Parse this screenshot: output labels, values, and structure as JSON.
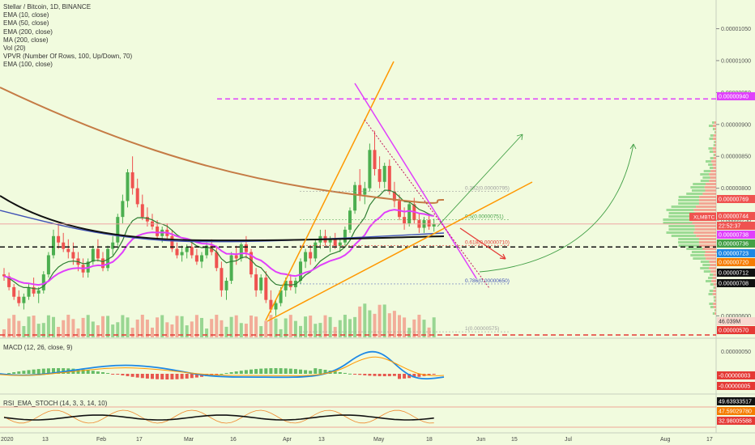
{
  "chart_data": {
    "type": "candlestick",
    "symbol_title": "Stellar / Bitcoin, 1D, BINANCE",
    "indicators": [
      "EMA (10, close)",
      "EMA (50, close)",
      "EMA (200, close)",
      "MA (200, close)",
      "Vol (20)",
      "VPVR (Number Of Rows, 100, Up/Down, 70)",
      "EMA (100, close)"
    ],
    "x_ticks": [
      "2020",
      "13",
      "Feb",
      "17",
      "Mar",
      "16",
      "Apr",
      "13",
      "May",
      "18",
      "Jun",
      "15",
      "Jul",
      "Aug",
      "17"
    ],
    "y_ticks": [
      "0.00001050",
      "0.00001000",
      "0.00000950",
      "0.00000900",
      "0.00000850",
      "0.00000800",
      "0.00000750",
      "0.00000700",
      "0.00000650",
      "0.00000600"
    ],
    "y_range": [
      5.65e-06,
      1.095e-05
    ],
    "price_tags": [
      {
        "text": "0.00000940",
        "color": "#e040fb"
      },
      {
        "text": "0.00000769",
        "color": "#ef5350"
      },
      {
        "text": "0.00000744",
        "color": "#ef5350"
      },
      {
        "text": "22:52:37",
        "color": "#ef5350"
      },
      {
        "text": "0.00000738",
        "color": "#e040fb"
      },
      {
        "text": "0.00000736",
        "color": "#43a047"
      },
      {
        "text": "0.00000723",
        "color": "#1e88e5"
      },
      {
        "text": "0.00000720",
        "color": "#f57c00"
      },
      {
        "text": "0.00000712",
        "color": "#111111"
      },
      {
        "text": "0.00000708",
        "color": "#111111"
      },
      {
        "text": "46.039M",
        "color": "#e8a38f"
      },
      {
        "text": "0.00000570",
        "color": "#e53935"
      }
    ],
    "symbol_badge": "XLMBTC",
    "fib_labels": [
      "0.382(0.00000795)",
      "0.5(0.00000751)",
      "0.618(0.00000710)",
      "0.786(0.00000650)",
      "1(0.00000575)"
    ],
    "macd": {
      "label": "MACD (12, 26, close, 9)",
      "y_ticks": [
        "0.00000050"
      ],
      "tags": [
        {
          "text": "-0.00000003",
          "color": "#e53935"
        },
        {
          "text": "-0.00000005",
          "color": "#e53935"
        }
      ]
    },
    "rsi": {
      "label": "RSI_EMA_STOCH (14, 3, 3, 14, 10)",
      "tags": [
        {
          "text": "49.63933517",
          "color": "#111111"
        },
        {
          "text": "47.59029780",
          "color": "#f57c00"
        },
        {
          "text": "32.98005588",
          "color": "#e53935"
        }
      ]
    },
    "candles": [
      [
        6.65e-06,
        6.75e-06,
        6.55e-06,
        6.62e-06
      ],
      [
        6.62e-06,
        6.68e-06,
        6.4e-06,
        6.45e-06
      ],
      [
        6.45e-06,
        6.5e-06,
        6.25e-06,
        6.3e-06
      ],
      [
        6.3e-06,
        6.4e-06,
        6.15e-06,
        6.2e-06
      ],
      [
        6.2e-06,
        6.35e-06,
        6.1e-06,
        6.3e-06
      ],
      [
        6.3e-06,
        6.5e-06,
        6.25e-06,
        6.45e-06
      ],
      [
        6.45e-06,
        6.6e-06,
        6.3e-06,
        6.35e-06
      ],
      [
        6.35e-06,
        6.45e-06,
        6.2e-06,
        6.4e-06
      ],
      [
        6.4e-06,
        6.7e-06,
        6.35e-06,
        6.65e-06
      ],
      [
        6.65e-06,
        7e-06,
        6.6e-06,
        6.95e-06
      ],
      [
        6.95e-06,
        7.35e-06,
        6.9e-06,
        7.25e-06
      ],
      [
        7.25e-06,
        7.45e-06,
        7.05e-06,
        7.15e-06
      ],
      [
        7.15e-06,
        7.3e-06,
        7e-06,
        7.05e-06
      ],
      [
        7.05e-06,
        7.2e-06,
        6.9e-06,
        7e-06
      ],
      [
        7e-06,
        7.15e-06,
        6.8e-06,
        6.9e-06
      ],
      [
        6.9e-06,
        7e-06,
        6.7e-06,
        6.8e-06
      ],
      [
        6.8e-06,
        6.9e-06,
        6.6e-06,
        6.68e-06
      ],
      [
        6.68e-06,
        6.9e-06,
        6.6e-06,
        6.85e-06
      ],
      [
        6.85e-06,
        7.1e-06,
        6.8e-06,
        7.05e-06
      ],
      [
        7.05e-06,
        7.2e-06,
        6.85e-06,
        6.9e-06
      ],
      [
        6.9e-06,
        7e-06,
        6.7e-06,
        6.75e-06
      ],
      [
        6.75e-06,
        7.1e-06,
        6.7e-06,
        7.05e-06
      ],
      [
        7.05e-06,
        7.25e-06,
        6.95e-06,
        7.15e-06
      ],
      [
        7.15e-06,
        7.6e-06,
        7.1e-06,
        7.55e-06
      ],
      [
        7.55e-06,
        7.9e-06,
        7.45e-06,
        7.8e-06
      ],
      [
        7.8e-06,
        8.3e-06,
        7.7e-06,
        8.25e-06
      ],
      [
        8.25e-06,
        8.5e-06,
        7.9e-06,
        8e-06
      ],
      [
        8e-06,
        8.15e-06,
        7.7e-06,
        7.75e-06
      ],
      [
        7.75e-06,
        7.9e-06,
        7.5e-06,
        7.55e-06
      ],
      [
        7.55e-06,
        7.7e-06,
        7.4e-06,
        7.48e-06
      ],
      [
        7.48e-06,
        7.6e-06,
        7.35e-06,
        7.4e-06
      ],
      [
        7.4e-06,
        7.5e-06,
        7.2e-06,
        7.25e-06
      ],
      [
        7.25e-06,
        7.4e-06,
        7.15e-06,
        7.35e-06
      ],
      [
        7.35e-06,
        7.45e-06,
        7.2e-06,
        7.25e-06
      ],
      [
        7.25e-06,
        7.35e-06,
        7e-06,
        7.05e-06
      ],
      [
        7.05e-06,
        7.15e-06,
        6.9e-06,
        6.95e-06
      ],
      [
        6.95e-06,
        7.1e-06,
        6.85e-06,
        7e-06
      ],
      [
        7e-06,
        7.12e-06,
        6.9e-06,
        7.08e-06
      ],
      [
        7.08e-06,
        7.15e-06,
        6.9e-06,
        6.95e-06
      ],
      [
        6.95e-06,
        7.05e-06,
        6.8e-06,
        6.85e-06
      ],
      [
        6.85e-06,
        7e-06,
        6.75e-06,
        6.95e-06
      ],
      [
        6.95e-06,
        7.15e-06,
        6.9e-06,
        7.1e-06
      ],
      [
        7.1e-06,
        7.2e-06,
        6.95e-06,
        7e-06
      ],
      [
        7e-06,
        7.1e-06,
        6.7e-06,
        6.75e-06
      ],
      [
        6.75e-06,
        6.85e-06,
        6.3e-06,
        6.4e-06
      ],
      [
        6.4e-06,
        6.6e-06,
        6.25e-06,
        6.55e-06
      ],
      [
        6.55e-06,
        7e-06,
        6.5e-06,
        6.95e-06
      ],
      [
        6.95e-06,
        7.1e-06,
        6.8e-06,
        6.9e-06
      ],
      [
        6.9e-06,
        7.15e-06,
        6.85e-06,
        7.12e-06
      ],
      [
        7.12e-06,
        7.25e-06,
        6.9e-06,
        7e-06
      ],
      [
        7e-06,
        7.05e-06,
        6.6e-06,
        6.65e-06
      ],
      [
        6.65e-06,
        6.75e-06,
        6.3e-06,
        6.4e-06
      ],
      [
        6.4e-06,
        6.65e-06,
        6.35e-06,
        6.6e-06
      ],
      [
        6.6e-06,
        6.7e-06,
        6.2e-06,
        6.25e-06
      ],
      [
        6.25e-06,
        6.4e-06,
        6.05e-06,
        6.1e-06
      ],
      [
        6.1e-06,
        6.25e-06,
        6e-06,
        6.2e-06
      ],
      [
        6.2e-06,
        6.45e-06,
        6.15e-06,
        6.4e-06
      ],
      [
        6.4e-06,
        6.6e-06,
        6.3e-06,
        6.55e-06
      ],
      [
        6.55e-06,
        6.65e-06,
        6.4e-06,
        6.45e-06
      ],
      [
        6.45e-06,
        6.6e-06,
        6.35e-06,
        6.55e-06
      ],
      [
        6.55e-06,
        6.9e-06,
        6.5e-06,
        6.85e-06
      ],
      [
        6.85e-06,
        7.05e-06,
        6.75e-06,
        7e-06
      ],
      [
        7e-06,
        7.1e-06,
        6.8e-06,
        6.9e-06
      ],
      [
        6.9e-06,
        7.2e-06,
        6.85e-06,
        7.15e-06
      ],
      [
        7.15e-06,
        7.35e-06,
        7.05e-06,
        7.25e-06
      ],
      [
        7.25e-06,
        7.35e-06,
        7.1e-06,
        7.15e-06
      ],
      [
        7.15e-06,
        7.25e-06,
        7e-06,
        7.2e-06
      ],
      [
        7.2e-06,
        7.3e-06,
        7.05e-06,
        7.1e-06
      ],
      [
        7.1e-06,
        7.2e-06,
        7e-06,
        7.15e-06
      ],
      [
        7.15e-06,
        7.4e-06,
        7.1e-06,
        7.35e-06
      ],
      [
        7.35e-06,
        7.7e-06,
        7.3e-06,
        7.65e-06
      ],
      [
        7.65e-06,
        8.1e-06,
        7.6e-06,
        8.05e-06
      ],
      [
        8.05e-06,
        8.3e-06,
        7.8e-06,
        7.9e-06
      ],
      [
        7.9e-06,
        8.1e-06,
        7.75e-06,
        8e-06
      ],
      [
        8e-06,
        8.7e-06,
        7.95e-06,
        8.6e-06
      ],
      [
        8.6e-06,
        8.9e-06,
        8.2e-06,
        8.3e-06
      ],
      [
        8.3e-06,
        8.5e-06,
        8e-06,
        8.1e-06
      ],
      [
        8.1e-06,
        8.4e-06,
        8e-06,
        8.35e-06
      ],
      [
        8.35e-06,
        8.45e-06,
        7.9e-06,
        7.95e-06
      ],
      [
        7.95e-06,
        8.1e-06,
        7.7e-06,
        7.8e-06
      ],
      [
        7.8e-06,
        7.9e-06,
        7.5e-06,
        7.55e-06
      ],
      [
        7.55e-06,
        7.7e-06,
        7.35e-06,
        7.45e-06
      ],
      [
        7.45e-06,
        7.8e-06,
        7.4e-06,
        7.75e-06
      ],
      [
        7.75e-06,
        7.85e-06,
        7.45e-06,
        7.5e-06
      ],
      [
        7.5e-06,
        7.6e-06,
        7.3e-06,
        7.38e-06
      ],
      [
        7.38e-06,
        7.55e-06,
        7.3e-06,
        7.5e-06
      ],
      [
        7.5e-06,
        7.6e-06,
        7.35e-06,
        7.4e-06
      ],
      [
        7.4e-06,
        7.52e-06,
        7.32e-06,
        7.44e-06
      ]
    ],
    "volume_label": "46.039M"
  }
}
